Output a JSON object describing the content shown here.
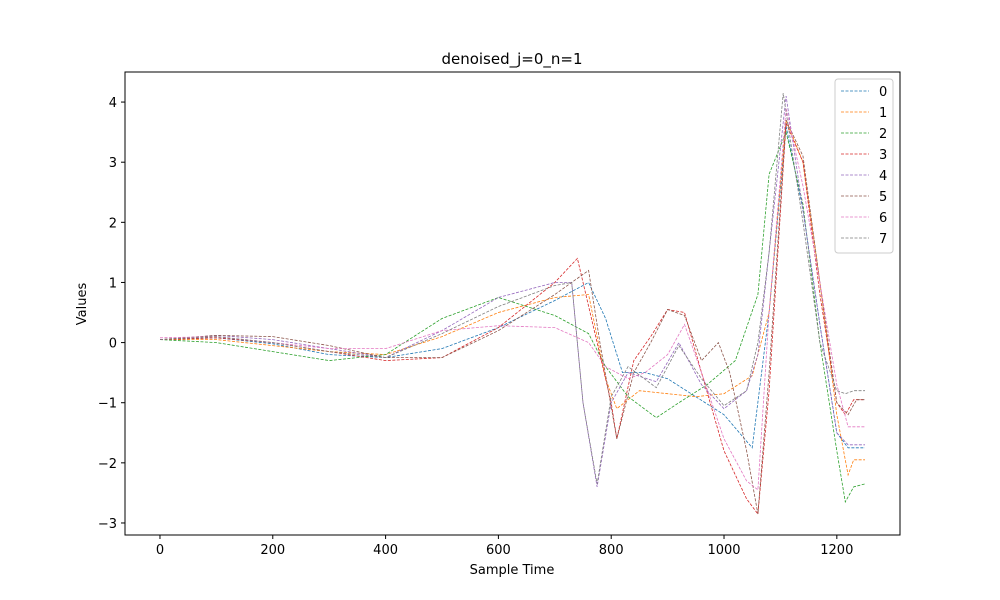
{
  "chart_data": {
    "type": "line",
    "title": "denoised_j=0_n=1",
    "xlabel": "Sample Time",
    "ylabel": "Values",
    "xlim": [
      -62,
      1312
    ],
    "ylim": [
      -3.2,
      4.5
    ],
    "x_ticks": [
      0,
      200,
      400,
      600,
      800,
      1000,
      1200
    ],
    "y_ticks": [
      -3,
      -2,
      -1,
      0,
      1,
      2,
      3,
      4
    ],
    "grid": false,
    "legend_position": "top-right",
    "line_style": "dashed",
    "series": [
      {
        "name": "0",
        "color": "#1f77b4",
        "points": [
          [
            0,
            0.05
          ],
          [
            100,
            0.08
          ],
          [
            200,
            -0.02
          ],
          [
            300,
            -0.2
          ],
          [
            400,
            -0.25
          ],
          [
            500,
            -0.1
          ],
          [
            600,
            0.25
          ],
          [
            700,
            0.7
          ],
          [
            760,
            1.0
          ],
          [
            790,
            0.4
          ],
          [
            820,
            -0.5
          ],
          [
            860,
            -0.5
          ],
          [
            900,
            -0.6
          ],
          [
            950,
            -0.9
          ],
          [
            1000,
            -1.2
          ],
          [
            1050,
            -1.75
          ],
          [
            1080,
            0.5
          ],
          [
            1110,
            3.6
          ],
          [
            1140,
            2.2
          ],
          [
            1170,
            0.3
          ],
          [
            1200,
            -1.5
          ],
          [
            1220,
            -1.75
          ],
          [
            1250,
            -1.75
          ]
        ]
      },
      {
        "name": "1",
        "color": "#ff7f0e",
        "points": [
          [
            0,
            0.05
          ],
          [
            100,
            0.05
          ],
          [
            200,
            -0.05
          ],
          [
            300,
            -0.15
          ],
          [
            400,
            -0.2
          ],
          [
            500,
            0.1
          ],
          [
            600,
            0.5
          ],
          [
            700,
            0.75
          ],
          [
            760,
            0.8
          ],
          [
            790,
            -0.6
          ],
          [
            810,
            -1.1
          ],
          [
            850,
            -0.8
          ],
          [
            900,
            -0.85
          ],
          [
            950,
            -0.9
          ],
          [
            1000,
            -0.85
          ],
          [
            1050,
            -0.55
          ],
          [
            1080,
            0.5
          ],
          [
            1110,
            3.7
          ],
          [
            1140,
            3.0
          ],
          [
            1170,
            1.0
          ],
          [
            1200,
            -1.2
          ],
          [
            1220,
            -2.2
          ],
          [
            1230,
            -1.95
          ],
          [
            1250,
            -1.95
          ]
        ]
      },
      {
        "name": "2",
        "color": "#2ca02c",
        "points": [
          [
            0,
            0.05
          ],
          [
            100,
            0.0
          ],
          [
            200,
            -0.15
          ],
          [
            300,
            -0.3
          ],
          [
            400,
            -0.2
          ],
          [
            500,
            0.4
          ],
          [
            600,
            0.75
          ],
          [
            700,
            0.45
          ],
          [
            760,
            0.15
          ],
          [
            790,
            -0.4
          ],
          [
            830,
            -0.9
          ],
          [
            880,
            -1.25
          ],
          [
            920,
            -1.0
          ],
          [
            970,
            -0.7
          ],
          [
            1020,
            -0.3
          ],
          [
            1060,
            0.8
          ],
          [
            1080,
            2.8
          ],
          [
            1110,
            3.5
          ],
          [
            1140,
            2.3
          ],
          [
            1170,
            0.0
          ],
          [
            1200,
            -1.8
          ],
          [
            1215,
            -2.65
          ],
          [
            1230,
            -2.4
          ],
          [
            1250,
            -2.35
          ]
        ]
      },
      {
        "name": "3",
        "color": "#d62728",
        "points": [
          [
            0,
            0.05
          ],
          [
            100,
            0.08
          ],
          [
            200,
            0.0
          ],
          [
            300,
            -0.15
          ],
          [
            400,
            -0.3
          ],
          [
            500,
            -0.25
          ],
          [
            600,
            0.25
          ],
          [
            700,
            1.0
          ],
          [
            740,
            1.4
          ],
          [
            770,
            0.2
          ],
          [
            800,
            -1.0
          ],
          [
            810,
            -1.6
          ],
          [
            840,
            -0.3
          ],
          [
            870,
            0.1
          ],
          [
            900,
            0.55
          ],
          [
            930,
            0.5
          ],
          [
            960,
            -0.5
          ],
          [
            1000,
            -1.8
          ],
          [
            1040,
            -2.6
          ],
          [
            1060,
            -2.85
          ],
          [
            1080,
            -0.8
          ],
          [
            1110,
            3.65
          ],
          [
            1140,
            3.0
          ],
          [
            1170,
            0.8
          ],
          [
            1200,
            -1.0
          ],
          [
            1215,
            -1.2
          ],
          [
            1230,
            -0.95
          ],
          [
            1250,
            -0.95
          ]
        ]
      },
      {
        "name": "4",
        "color": "#9467bd",
        "points": [
          [
            0,
            0.05
          ],
          [
            100,
            0.12
          ],
          [
            200,
            0.05
          ],
          [
            300,
            -0.1
          ],
          [
            400,
            -0.25
          ],
          [
            500,
            0.2
          ],
          [
            600,
            0.75
          ],
          [
            700,
            1.0
          ],
          [
            730,
            1.0
          ],
          [
            750,
            -1.0
          ],
          [
            775,
            -2.4
          ],
          [
            800,
            -1.0
          ],
          [
            830,
            -0.5
          ],
          [
            880,
            -0.65
          ],
          [
            920,
            0.0
          ],
          [
            960,
            -0.7
          ],
          [
            1000,
            -1.1
          ],
          [
            1040,
            -0.8
          ],
          [
            1060,
            -0.2
          ],
          [
            1080,
            1.5
          ],
          [
            1110,
            4.1
          ],
          [
            1140,
            2.2
          ],
          [
            1170,
            0.3
          ],
          [
            1200,
            -1.5
          ],
          [
            1220,
            -1.7
          ],
          [
            1250,
            -1.7
          ]
        ]
      },
      {
        "name": "5",
        "color": "#8c564b",
        "points": [
          [
            0,
            0.05
          ],
          [
            100,
            0.12
          ],
          [
            200,
            0.1
          ],
          [
            300,
            -0.05
          ],
          [
            400,
            -0.25
          ],
          [
            500,
            -0.25
          ],
          [
            600,
            0.2
          ],
          [
            700,
            0.8
          ],
          [
            760,
            1.2
          ],
          [
            780,
            0.0
          ],
          [
            810,
            -1.6
          ],
          [
            840,
            -0.5
          ],
          [
            870,
            0.0
          ],
          [
            900,
            0.55
          ],
          [
            930,
            0.45
          ],
          [
            960,
            -0.3
          ],
          [
            990,
            0.0
          ],
          [
            1010,
            -0.5
          ],
          [
            1040,
            -1.8
          ],
          [
            1060,
            -2.85
          ],
          [
            1080,
            -0.5
          ],
          [
            1110,
            3.7
          ],
          [
            1140,
            3.1
          ],
          [
            1170,
            1.0
          ],
          [
            1200,
            -1.0
          ],
          [
            1220,
            -1.2
          ],
          [
            1235,
            -0.95
          ],
          [
            1250,
            -0.95
          ]
        ]
      },
      {
        "name": "6",
        "color": "#e377c2",
        "points": [
          [
            0,
            0.08
          ],
          [
            100,
            0.1
          ],
          [
            200,
            0.0
          ],
          [
            300,
            -0.1
          ],
          [
            400,
            -0.1
          ],
          [
            500,
            0.2
          ],
          [
            600,
            0.28
          ],
          [
            700,
            0.25
          ],
          [
            760,
            0.0
          ],
          [
            790,
            -0.4
          ],
          [
            830,
            -0.6
          ],
          [
            860,
            -0.5
          ],
          [
            900,
            -0.2
          ],
          [
            930,
            0.3
          ],
          [
            960,
            -0.5
          ],
          [
            1000,
            -1.6
          ],
          [
            1040,
            -2.3
          ],
          [
            1060,
            -2.45
          ],
          [
            1080,
            0.5
          ],
          [
            1110,
            3.9
          ],
          [
            1140,
            2.6
          ],
          [
            1170,
            1.0
          ],
          [
            1200,
            -0.7
          ],
          [
            1220,
            -1.4
          ],
          [
            1250,
            -1.4
          ]
        ]
      },
      {
        "name": "7",
        "color": "#7f7f7f",
        "points": [
          [
            0,
            0.05
          ],
          [
            100,
            0.1
          ],
          [
            200,
            0.0
          ],
          [
            300,
            -0.15
          ],
          [
            400,
            -0.25
          ],
          [
            500,
            0.15
          ],
          [
            600,
            0.6
          ],
          [
            700,
            0.95
          ],
          [
            730,
            1.0
          ],
          [
            750,
            -1.0
          ],
          [
            775,
            -2.35
          ],
          [
            800,
            -0.9
          ],
          [
            830,
            -0.4
          ],
          [
            880,
            -0.75
          ],
          [
            920,
            -0.05
          ],
          [
            960,
            -0.6
          ],
          [
            1000,
            -1.05
          ],
          [
            1040,
            -0.8
          ],
          [
            1060,
            0.0
          ],
          [
            1080,
            1.5
          ],
          [
            1105,
            4.15
          ],
          [
            1140,
            2.0
          ],
          [
            1170,
            0.0
          ],
          [
            1200,
            -0.8
          ],
          [
            1215,
            -0.85
          ],
          [
            1230,
            -0.8
          ],
          [
            1250,
            -0.8
          ]
        ]
      }
    ]
  }
}
